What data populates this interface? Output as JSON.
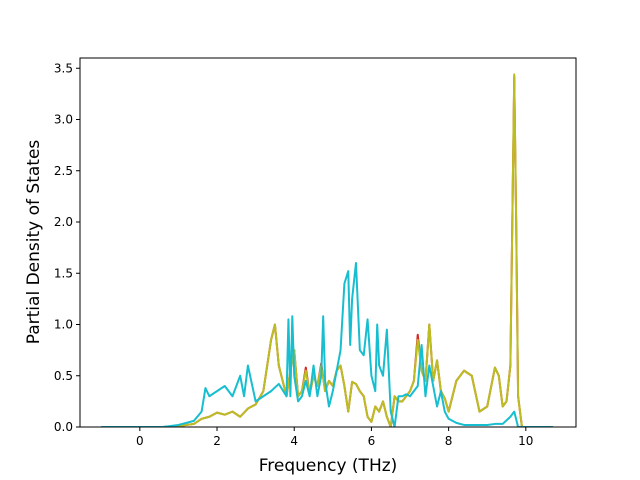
{
  "chart_data": {
    "type": "line",
    "title": "",
    "xlabel": "Frequency (THz)",
    "ylabel": "Partial Density of States",
    "xlim": [
      -1.55,
      11.3
    ],
    "ylim": [
      0,
      3.6
    ],
    "xticks": [
      0,
      2,
      4,
      6,
      8,
      10
    ],
    "yticks": [
      0.0,
      0.5,
      1.0,
      1.5,
      2.0,
      2.5,
      3.0,
      3.5
    ],
    "xtick_labels": [
      "0",
      "2",
      "4",
      "6",
      "8",
      "10"
    ],
    "ytick_labels": [
      "0.0",
      "0.5",
      "1.0",
      "1.5",
      "2.0",
      "2.5",
      "3.0",
      "3.5"
    ],
    "grid": false,
    "legend": "none",
    "series": [
      {
        "color": "#d62728",
        "x": [
          -1.0,
          0.0,
          0.6,
          1.0,
          1.4,
          1.6,
          1.8,
          2.0,
          2.2,
          2.4,
          2.6,
          2.8,
          3.0,
          3.2,
          3.4,
          3.5,
          3.6,
          3.7,
          3.8,
          3.9,
          4.0,
          4.1,
          4.2,
          4.3,
          4.4,
          4.5,
          4.6,
          4.7,
          4.8,
          4.9,
          5.0,
          5.1,
          5.2,
          5.3,
          5.4,
          5.5,
          5.6,
          5.7,
          5.8,
          5.9,
          6.0,
          6.1,
          6.2,
          6.3,
          6.4,
          6.5,
          6.6,
          6.7,
          6.8,
          6.9,
          7.0,
          7.1,
          7.2,
          7.3,
          7.4,
          7.5,
          7.6,
          7.7,
          7.8,
          7.9,
          8.0,
          8.2,
          8.4,
          8.6,
          8.8,
          9.0,
          9.2,
          9.3,
          9.4,
          9.5,
          9.6,
          9.65,
          9.7,
          9.75,
          9.8,
          9.9,
          10.7
        ],
        "y": [
          0.0,
          0.0,
          0.0,
          0.01,
          0.03,
          0.08,
          0.1,
          0.14,
          0.12,
          0.15,
          0.1,
          0.18,
          0.22,
          0.35,
          0.85,
          1.0,
          0.6,
          0.45,
          0.3,
          0.55,
          0.75,
          0.3,
          0.35,
          0.58,
          0.32,
          0.5,
          0.4,
          0.62,
          0.35,
          0.45,
          0.4,
          0.55,
          0.6,
          0.4,
          0.15,
          0.44,
          0.42,
          0.35,
          0.3,
          0.1,
          0.05,
          0.2,
          0.15,
          0.25,
          0.1,
          0.0,
          0.3,
          0.25,
          0.25,
          0.3,
          0.35,
          0.45,
          0.9,
          0.55,
          0.45,
          1.0,
          0.45,
          0.65,
          0.35,
          0.28,
          0.15,
          0.45,
          0.55,
          0.5,
          0.15,
          0.2,
          0.58,
          0.5,
          0.2,
          0.25,
          0.6,
          2.0,
          3.42,
          2.0,
          0.3,
          0.0,
          0.0
        ]
      },
      {
        "color": "#bcbd22",
        "x": [
          -1.0,
          0.0,
          0.6,
          1.0,
          1.4,
          1.6,
          1.8,
          2.0,
          2.2,
          2.4,
          2.6,
          2.8,
          3.0,
          3.2,
          3.4,
          3.5,
          3.6,
          3.7,
          3.8,
          3.9,
          4.0,
          4.1,
          4.2,
          4.3,
          4.4,
          4.5,
          4.6,
          4.7,
          4.8,
          4.9,
          5.0,
          5.1,
          5.2,
          5.3,
          5.4,
          5.5,
          5.6,
          5.7,
          5.8,
          5.9,
          6.0,
          6.1,
          6.2,
          6.3,
          6.4,
          6.5,
          6.6,
          6.7,
          6.8,
          6.9,
          7.0,
          7.1,
          7.2,
          7.3,
          7.4,
          7.5,
          7.6,
          7.7,
          7.8,
          7.9,
          8.0,
          8.2,
          8.4,
          8.6,
          8.8,
          9.0,
          9.2,
          9.3,
          9.4,
          9.5,
          9.6,
          9.65,
          9.7,
          9.75,
          9.8,
          9.9,
          10.7
        ],
        "y": [
          0.0,
          0.0,
          0.0,
          0.01,
          0.03,
          0.08,
          0.1,
          0.14,
          0.12,
          0.15,
          0.1,
          0.18,
          0.22,
          0.35,
          0.85,
          1.0,
          0.6,
          0.45,
          0.3,
          0.55,
          0.75,
          0.3,
          0.35,
          0.55,
          0.32,
          0.5,
          0.4,
          0.6,
          0.35,
          0.45,
          0.4,
          0.55,
          0.6,
          0.4,
          0.15,
          0.44,
          0.42,
          0.35,
          0.3,
          0.1,
          0.05,
          0.2,
          0.15,
          0.25,
          0.1,
          0.0,
          0.3,
          0.25,
          0.25,
          0.3,
          0.35,
          0.45,
          0.85,
          0.55,
          0.45,
          1.0,
          0.45,
          0.65,
          0.35,
          0.28,
          0.15,
          0.45,
          0.55,
          0.5,
          0.15,
          0.2,
          0.58,
          0.5,
          0.2,
          0.25,
          0.6,
          2.0,
          3.44,
          2.0,
          0.3,
          0.0,
          0.0
        ]
      },
      {
        "color": "#17becf",
        "x": [
          -1.0,
          0.0,
          0.6,
          1.0,
          1.4,
          1.6,
          1.7,
          1.8,
          2.0,
          2.2,
          2.4,
          2.6,
          2.7,
          2.8,
          3.0,
          3.2,
          3.4,
          3.6,
          3.8,
          3.85,
          3.9,
          3.95,
          4.0,
          4.1,
          4.2,
          4.3,
          4.4,
          4.5,
          4.6,
          4.7,
          4.75,
          4.8,
          4.9,
          5.0,
          5.1,
          5.2,
          5.3,
          5.4,
          5.45,
          5.5,
          5.6,
          5.7,
          5.8,
          5.9,
          6.0,
          6.1,
          6.15,
          6.2,
          6.3,
          6.4,
          6.5,
          6.6,
          6.7,
          6.8,
          6.9,
          7.0,
          7.1,
          7.2,
          7.3,
          7.4,
          7.5,
          7.6,
          7.7,
          7.8,
          7.9,
          8.0,
          8.2,
          8.4,
          8.6,
          8.8,
          9.0,
          9.2,
          9.4,
          9.6,
          9.7,
          9.8,
          9.9,
          10.7
        ],
        "y": [
          0.0,
          0.0,
          0.0,
          0.02,
          0.06,
          0.15,
          0.38,
          0.3,
          0.35,
          0.4,
          0.3,
          0.5,
          0.3,
          0.6,
          0.25,
          0.3,
          0.35,
          0.42,
          0.3,
          1.05,
          0.3,
          1.08,
          0.5,
          0.25,
          0.3,
          0.45,
          0.3,
          0.6,
          0.3,
          0.5,
          1.08,
          0.45,
          0.2,
          0.35,
          0.55,
          0.75,
          1.4,
          1.52,
          0.8,
          1.25,
          1.6,
          0.75,
          0.7,
          1.05,
          0.5,
          0.35,
          1.0,
          0.6,
          0.5,
          0.95,
          0.15,
          0.0,
          0.3,
          0.3,
          0.32,
          0.3,
          0.35,
          0.4,
          0.8,
          0.3,
          0.6,
          0.4,
          0.2,
          0.35,
          0.15,
          0.08,
          0.04,
          0.02,
          0.02,
          0.02,
          0.02,
          0.03,
          0.03,
          0.1,
          0.15,
          0.0,
          0.0,
          0.0
        ]
      }
    ]
  }
}
